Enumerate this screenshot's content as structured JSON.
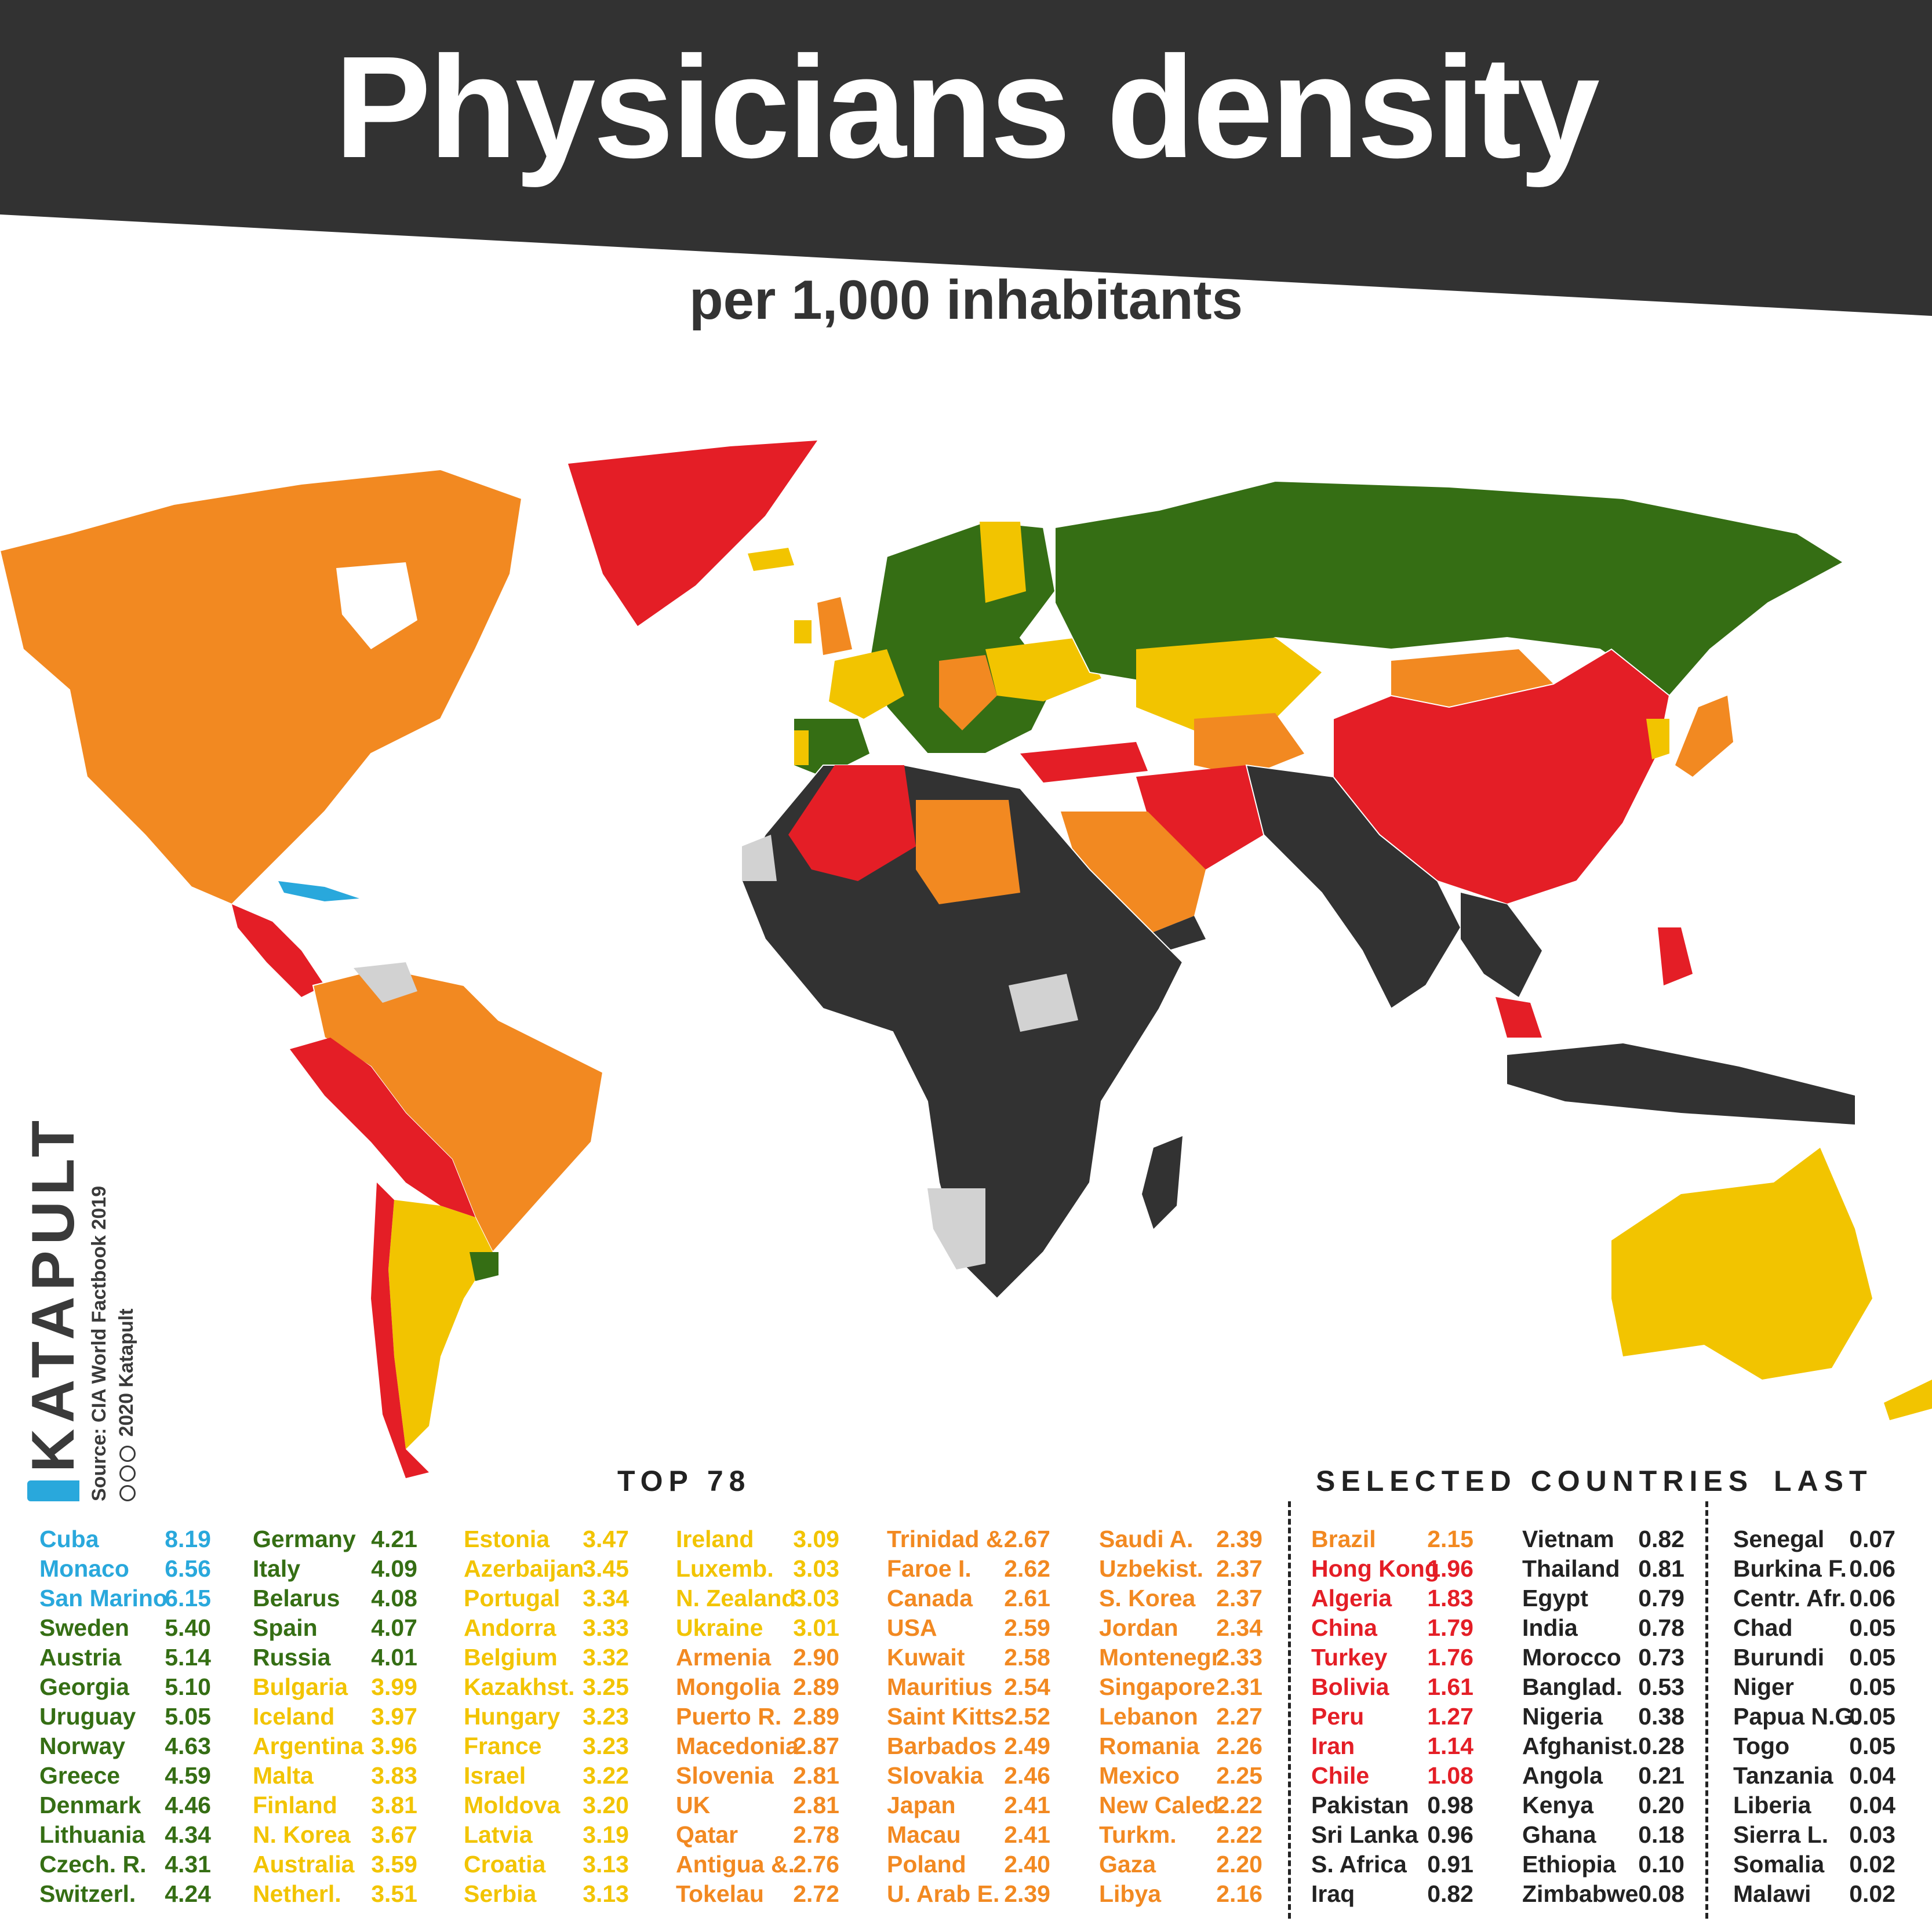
{
  "title": "Physicians density",
  "subtitle": "per 1,000 inhabitants",
  "brand": {
    "logo": "KATAPULT",
    "source": "Source: CIA World Factbook 2019",
    "copyright": "2020 Katapult"
  },
  "colors": {
    "over_6": "#29a8dc",
    "4_to_6": "#356e14",
    "3_to_4": "#f2c400",
    "2_to_3": "#f28921",
    "1_to_2": "#e41e26",
    "under_1": "#323232",
    "no_data": "#d2d2d2",
    "banner": "#323232",
    "text_dark": "#222222"
  },
  "sections": {
    "top": "TOP 78",
    "selected": "SELECTED COUNTRIES",
    "last": "LAST"
  },
  "chart_data": {
    "type": "table",
    "unit": "per 1,000 inhabitants",
    "top78": [
      {
        "country": "Cuba",
        "value": "8.19",
        "band": "over_6"
      },
      {
        "country": "Monaco",
        "value": "6.56",
        "band": "over_6"
      },
      {
        "country": "San Marino",
        "value": "6.15",
        "band": "over_6"
      },
      {
        "country": "Sweden",
        "value": "5.40",
        "band": "4_to_6"
      },
      {
        "country": "Austria",
        "value": "5.14",
        "band": "4_to_6"
      },
      {
        "country": "Georgia",
        "value": "5.10",
        "band": "4_to_6"
      },
      {
        "country": "Uruguay",
        "value": "5.05",
        "band": "4_to_6"
      },
      {
        "country": "Norway",
        "value": "4.63",
        "band": "4_to_6"
      },
      {
        "country": "Greece",
        "value": "4.59",
        "band": "4_to_6"
      },
      {
        "country": "Denmark",
        "value": "4.46",
        "band": "4_to_6"
      },
      {
        "country": "Lithuania",
        "value": "4.34",
        "band": "4_to_6"
      },
      {
        "country": "Czech. R.",
        "value": "4.31",
        "band": "4_to_6"
      },
      {
        "country": "Switzerl.",
        "value": "4.24",
        "band": "4_to_6"
      },
      {
        "country": "Germany",
        "value": "4.21",
        "band": "4_to_6"
      },
      {
        "country": "Italy",
        "value": "4.09",
        "band": "4_to_6"
      },
      {
        "country": "Belarus",
        "value": "4.08",
        "band": "4_to_6"
      },
      {
        "country": "Spain",
        "value": "4.07",
        "band": "4_to_6"
      },
      {
        "country": "Russia",
        "value": "4.01",
        "band": "4_to_6"
      },
      {
        "country": "Bulgaria",
        "value": "3.99",
        "band": "3_to_4"
      },
      {
        "country": "Iceland",
        "value": "3.97",
        "band": "3_to_4"
      },
      {
        "country": "Argentina",
        "value": "3.96",
        "band": "3_to_4"
      },
      {
        "country": "Malta",
        "value": "3.83",
        "band": "3_to_4"
      },
      {
        "country": "Finland",
        "value": "3.81",
        "band": "3_to_4"
      },
      {
        "country": "N. Korea",
        "value": "3.67",
        "band": "3_to_4"
      },
      {
        "country": "Australia",
        "value": "3.59",
        "band": "3_to_4"
      },
      {
        "country": "Netherl.",
        "value": "3.51",
        "band": "3_to_4"
      },
      {
        "country": "Estonia",
        "value": "3.47",
        "band": "3_to_4"
      },
      {
        "country": "Azerbaijan",
        "value": "3.45",
        "band": "3_to_4"
      },
      {
        "country": "Portugal",
        "value": "3.34",
        "band": "3_to_4"
      },
      {
        "country": "Andorra",
        "value": "3.33",
        "band": "3_to_4"
      },
      {
        "country": "Belgium",
        "value": "3.32",
        "band": "3_to_4"
      },
      {
        "country": "Kazakhst.",
        "value": "3.25",
        "band": "3_to_4"
      },
      {
        "country": "Hungary",
        "value": "3.23",
        "band": "3_to_4"
      },
      {
        "country": "France",
        "value": "3.23",
        "band": "3_to_4"
      },
      {
        "country": "Israel",
        "value": "3.22",
        "band": "3_to_4"
      },
      {
        "country": "Moldova",
        "value": "3.20",
        "band": "3_to_4"
      },
      {
        "country": "Latvia",
        "value": "3.19",
        "band": "3_to_4"
      },
      {
        "country": "Croatia",
        "value": "3.13",
        "band": "3_to_4"
      },
      {
        "country": "Serbia",
        "value": "3.13",
        "band": "3_to_4"
      },
      {
        "country": "Ireland",
        "value": "3.09",
        "band": "3_to_4"
      },
      {
        "country": "Luxemb.",
        "value": "3.03",
        "band": "3_to_4"
      },
      {
        "country": "N. Zealand",
        "value": "3.03",
        "band": "3_to_4"
      },
      {
        "country": "Ukraine",
        "value": "3.01",
        "band": "3_to_4"
      },
      {
        "country": "Armenia",
        "value": "2.90",
        "band": "2_to_3"
      },
      {
        "country": "Mongolia",
        "value": "2.89",
        "band": "2_to_3"
      },
      {
        "country": "Puerto R.",
        "value": "2.89",
        "band": "2_to_3"
      },
      {
        "country": "Macedonia",
        "value": "2.87",
        "band": "2_to_3"
      },
      {
        "country": "Slovenia",
        "value": "2.81",
        "band": "2_to_3"
      },
      {
        "country": "UK",
        "value": "2.81",
        "band": "2_to_3"
      },
      {
        "country": "Qatar",
        "value": "2.78",
        "band": "2_to_3"
      },
      {
        "country": "Antigua &.",
        "value": "2.76",
        "band": "2_to_3"
      },
      {
        "country": "Tokelau",
        "value": "2.72",
        "band": "2_to_3"
      },
      {
        "country": "Trinidad &.",
        "value": "2.67",
        "band": "2_to_3"
      },
      {
        "country": "Faroe I.",
        "value": "2.62",
        "band": "2_to_3"
      },
      {
        "country": "Canada",
        "value": "2.61",
        "band": "2_to_3"
      },
      {
        "country": "USA",
        "value": "2.59",
        "band": "2_to_3"
      },
      {
        "country": "Kuwait",
        "value": "2.58",
        "band": "2_to_3"
      },
      {
        "country": "Mauritius",
        "value": "2.54",
        "band": "2_to_3"
      },
      {
        "country": "Saint Kitts.",
        "value": "2.52",
        "band": "2_to_3"
      },
      {
        "country": "Barbados",
        "value": "2.49",
        "band": "2_to_3"
      },
      {
        "country": "Slovakia",
        "value": "2.46",
        "band": "2_to_3"
      },
      {
        "country": "Japan",
        "value": "2.41",
        "band": "2_to_3"
      },
      {
        "country": "Macau",
        "value": "2.41",
        "band": "2_to_3"
      },
      {
        "country": "Poland",
        "value": "2.40",
        "band": "2_to_3"
      },
      {
        "country": "U. Arab E.",
        "value": "2.39",
        "band": "2_to_3"
      },
      {
        "country": "Saudi A.",
        "value": "2.39",
        "band": "2_to_3"
      },
      {
        "country": "Uzbekist.",
        "value": "2.37",
        "band": "2_to_3"
      },
      {
        "country": "S. Korea",
        "value": "2.37",
        "band": "2_to_3"
      },
      {
        "country": "Jordan",
        "value": "2.34",
        "band": "2_to_3"
      },
      {
        "country": "Montenegr.",
        "value": "2.33",
        "band": "2_to_3"
      },
      {
        "country": "Singapore",
        "value": "2.31",
        "band": "2_to_3"
      },
      {
        "country": "Lebanon",
        "value": "2.27",
        "band": "2_to_3"
      },
      {
        "country": "Romania",
        "value": "2.26",
        "band": "2_to_3"
      },
      {
        "country": "Mexico",
        "value": "2.25",
        "band": "2_to_3"
      },
      {
        "country": "New Caled.",
        "value": "2.22",
        "band": "2_to_3"
      },
      {
        "country": "Turkm.",
        "value": "2.22",
        "band": "2_to_3"
      },
      {
        "country": "Gaza",
        "value": "2.20",
        "band": "2_to_3"
      },
      {
        "country": "Libya",
        "value": "2.16",
        "band": "2_to_3"
      }
    ],
    "selected": [
      {
        "country": "Brazil",
        "value": "2.15",
        "band": "2_to_3"
      },
      {
        "country": "Hong Kong",
        "value": "1.96",
        "band": "1_to_2"
      },
      {
        "country": "Algeria",
        "value": "1.83",
        "band": "1_to_2"
      },
      {
        "country": "China",
        "value": "1.79",
        "band": "1_to_2"
      },
      {
        "country": "Turkey",
        "value": "1.76",
        "band": "1_to_2"
      },
      {
        "country": "Bolivia",
        "value": "1.61",
        "band": "1_to_2"
      },
      {
        "country": "Peru",
        "value": "1.27",
        "band": "1_to_2"
      },
      {
        "country": "Iran",
        "value": "1.14",
        "band": "1_to_2"
      },
      {
        "country": "Chile",
        "value": "1.08",
        "band": "1_to_2"
      },
      {
        "country": "Pakistan",
        "value": "0.98",
        "band": "under_1"
      },
      {
        "country": "Sri Lanka",
        "value": "0.96",
        "band": "under_1"
      },
      {
        "country": "S. Africa",
        "value": "0.91",
        "band": "under_1"
      },
      {
        "country": "Iraq",
        "value": "0.82",
        "band": "under_1"
      },
      {
        "country": "Vietnam",
        "value": "0.82",
        "band": "under_1"
      },
      {
        "country": "Thailand",
        "value": "0.81",
        "band": "under_1"
      },
      {
        "country": "Egypt",
        "value": "0.79",
        "band": "under_1"
      },
      {
        "country": "India",
        "value": "0.78",
        "band": "under_1"
      },
      {
        "country": "Morocco",
        "value": "0.73",
        "band": "under_1"
      },
      {
        "country": "Banglad.",
        "value": "0.53",
        "band": "under_1"
      },
      {
        "country": "Nigeria",
        "value": "0.38",
        "band": "under_1"
      },
      {
        "country": "Afghanist.",
        "value": "0.28",
        "band": "under_1"
      },
      {
        "country": "Angola",
        "value": "0.21",
        "band": "under_1"
      },
      {
        "country": "Kenya",
        "value": "0.20",
        "band": "under_1"
      },
      {
        "country": "Ghana",
        "value": "0.18",
        "band": "under_1"
      },
      {
        "country": "Ethiopia",
        "value": "0.10",
        "band": "under_1"
      },
      {
        "country": "Zimbabwe",
        "value": "0.08",
        "band": "under_1"
      }
    ],
    "last": [
      {
        "country": "Senegal",
        "value": "0.07",
        "band": "under_1"
      },
      {
        "country": "Burkina F.",
        "value": "0.06",
        "band": "under_1"
      },
      {
        "country": "Centr. Afr.",
        "value": "0.06",
        "band": "under_1"
      },
      {
        "country": "Chad",
        "value": "0.05",
        "band": "under_1"
      },
      {
        "country": "Burundi",
        "value": "0.05",
        "band": "under_1"
      },
      {
        "country": "Niger",
        "value": "0.05",
        "band": "under_1"
      },
      {
        "country": "Papua N.G.",
        "value": "0.05",
        "band": "under_1"
      },
      {
        "country": "Togo",
        "value": "0.05",
        "band": "under_1"
      },
      {
        "country": "Tanzania",
        "value": "0.04",
        "band": "under_1"
      },
      {
        "country": "Liberia",
        "value": "0.04",
        "band": "under_1"
      },
      {
        "country": "Sierra L.",
        "value": "0.03",
        "band": "under_1"
      },
      {
        "country": "Somalia",
        "value": "0.02",
        "band": "under_1"
      },
      {
        "country": "Malawi",
        "value": "0.02",
        "band": "under_1"
      }
    ]
  }
}
